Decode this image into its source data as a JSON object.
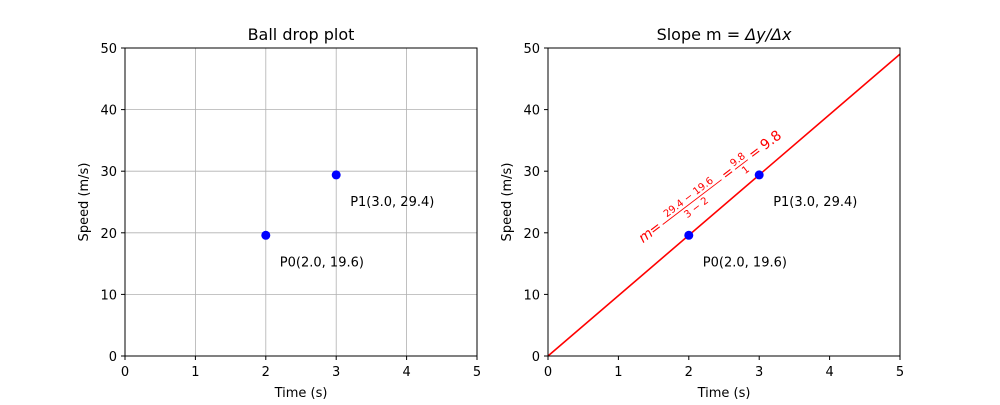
{
  "chart_data": [
    {
      "type": "scatter",
      "title": "Ball drop plot",
      "xlabel": "Time (s)",
      "ylabel": "Speed (m/s)",
      "xlim": [
        0,
        5
      ],
      "ylim": [
        0,
        50
      ],
      "xticks": [
        0,
        1,
        2,
        3,
        4,
        5
      ],
      "yticks": [
        0,
        10,
        20,
        30,
        40,
        50
      ],
      "grid": true,
      "point_color": "#0000ff",
      "points": [
        {
          "x": 2.0,
          "y": 19.6,
          "label": "P0(2.0, 19.6)"
        },
        {
          "x": 3.0,
          "y": 29.4,
          "label": "P1(3.0, 29.4)"
        }
      ]
    },
    {
      "type": "line",
      "title_text": "Slope m = ",
      "title_math": "Δy/Δx",
      "xlabel": "Time (s)",
      "ylabel": "Speed (m/s)",
      "xlim": [
        0,
        5
      ],
      "ylim": [
        0,
        50
      ],
      "xticks": [
        0,
        1,
        2,
        3,
        4,
        5
      ],
      "yticks": [
        0,
        10,
        20,
        30,
        40,
        50
      ],
      "grid": false,
      "line_color": "#ff0000",
      "point_color": "#0000ff",
      "line": {
        "slope": 9.8,
        "intercept": 0,
        "x": [
          0,
          5
        ]
      },
      "points": [
        {
          "x": 2.0,
          "y": 19.6,
          "label": "P0(2.0, 19.6)"
        },
        {
          "x": 3.0,
          "y": 29.4,
          "label": "P1(3.0, 29.4)"
        }
      ],
      "slope_annotation": {
        "m": "m",
        "frac1_num": "29.4 − 19.6",
        "frac1_den": "3 − 2",
        "frac2_num": "9.8",
        "frac2_den": "1",
        "result": "9.8"
      }
    }
  ]
}
